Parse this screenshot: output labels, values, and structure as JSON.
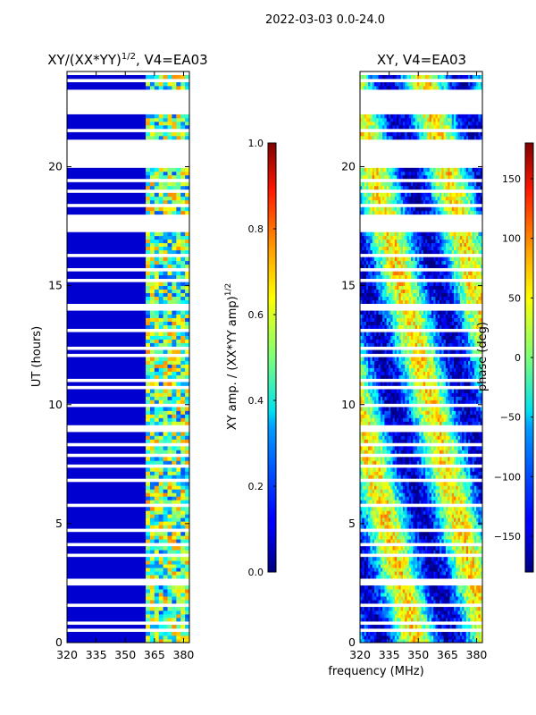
{
  "suptitle": "2022-03-03 0.0-24.0",
  "shared_xlabel": "frequency (MHz)",
  "chart_data": [
    {
      "type": "heatmap",
      "title": "XY/(XX*YY)",
      "title_exponent": "1/2",
      "title_suffix": ", V4=EA03",
      "xlabel": "",
      "ylabel": "UT (hours)",
      "xlim": [
        320,
        383
      ],
      "ylim": [
        0,
        24
      ],
      "x_ticks": [
        320,
        335,
        350,
        365,
        380
      ],
      "y_ticks": [
        0,
        5,
        10,
        15,
        20
      ],
      "colorbar": {
        "label": "XY amp. / (XX*YY amp)",
        "label_exponent": "1/2",
        "range": [
          0.0,
          1.0
        ],
        "ticks": [
          "0.0",
          "0.2",
          "0.4",
          "0.6",
          "0.8",
          "1.0"
        ],
        "tick_values": [
          0.0,
          0.2,
          0.4,
          0.6,
          0.8,
          1.0
        ],
        "colormap": "jet"
      },
      "background_value": 0.08,
      "active_band_mhz": [
        361,
        382
      ],
      "active_value_range": [
        0.2,
        0.75
      ],
      "data_gaps_hours": [
        [
          22.2,
          23.3
        ],
        [
          20.0,
          21.2
        ],
        [
          17.3,
          18.0
        ],
        [
          12.3,
          12.5
        ],
        [
          8.2,
          8.4
        ]
      ]
    },
    {
      "type": "heatmap",
      "title": "XY, V4=EA03",
      "xlabel": "frequency (MHz)",
      "ylabel": "",
      "xlim": [
        320,
        383
      ],
      "ylim": [
        0,
        24
      ],
      "x_ticks": [
        320,
        335,
        350,
        365,
        380
      ],
      "y_ticks": [
        0,
        5,
        10,
        15,
        20
      ],
      "colorbar": {
        "label": "phase (deg)",
        "range": [
          -180,
          180
        ],
        "ticks": [
          "−150",
          "−100",
          "−50",
          "0",
          "50",
          "100",
          "150"
        ],
        "tick_values": [
          -150,
          -100,
          -50,
          0,
          50,
          100,
          150
        ],
        "colormap": "jet"
      },
      "value_range_deg": [
        -180,
        180
      ],
      "data_gaps_hours": [
        [
          22.2,
          23.3
        ],
        [
          20.0,
          21.2
        ],
        [
          17.3,
          18.0
        ],
        [
          12.3,
          12.5
        ],
        [
          8.2,
          8.4
        ]
      ]
    }
  ]
}
